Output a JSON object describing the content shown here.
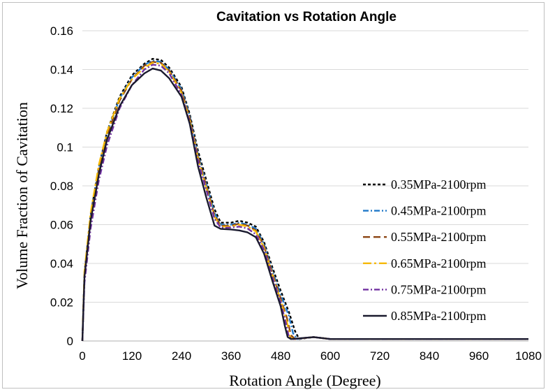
{
  "chart_data": {
    "type": "line",
    "title": "Cavitation vs Rotation Angle",
    "xlabel": "Rotation Angle (Degree)",
    "ylabel": "Volume Fraction of Cavitation",
    "xlim": [
      0,
      1080
    ],
    "ylim": [
      0,
      0.16
    ],
    "xticks": [
      0,
      120,
      240,
      360,
      480,
      600,
      720,
      840,
      960,
      1080
    ],
    "yticks": [
      0,
      0.02,
      0.04,
      0.06,
      0.08,
      0.1,
      0.12,
      0.14,
      0.16
    ],
    "xtick_labels": [
      "0",
      "120",
      "240",
      "360",
      "480",
      "600",
      "720",
      "840",
      "960",
      "1080"
    ],
    "ytick_labels": [
      "0",
      "0.02",
      "0.04",
      "0.06",
      "0.08",
      "0.1",
      "0.12",
      "0.14",
      "0.16"
    ],
    "grid": "horizontal",
    "legend_position": "right",
    "series": [
      {
        "name": "0.35MPa-2100rpm",
        "color": "#000000",
        "dash": "short-dash",
        "points": [
          [
            0,
            0
          ],
          [
            5,
            0.035
          ],
          [
            20,
            0.065
          ],
          [
            40,
            0.09
          ],
          [
            60,
            0.108
          ],
          [
            90,
            0.126
          ],
          [
            120,
            0.137
          ],
          [
            150,
            0.143
          ],
          [
            170,
            0.1455
          ],
          [
            190,
            0.145
          ],
          [
            210,
            0.141
          ],
          [
            240,
            0.131
          ],
          [
            260,
            0.117
          ],
          [
            280,
            0.098
          ],
          [
            300,
            0.083
          ],
          [
            320,
            0.068
          ],
          [
            335,
            0.061
          ],
          [
            360,
            0.061
          ],
          [
            380,
            0.062
          ],
          [
            400,
            0.061
          ],
          [
            420,
            0.059
          ],
          [
            440,
            0.051
          ],
          [
            460,
            0.038
          ],
          [
            480,
            0.026
          ],
          [
            500,
            0.015
          ],
          [
            515,
            0.005
          ],
          [
            525,
            0.001
          ],
          [
            560,
            0.002
          ],
          [
            600,
            0.001
          ],
          [
            700,
            0.001
          ],
          [
            800,
            0.001
          ],
          [
            900,
            0.001
          ],
          [
            1000,
            0.001
          ],
          [
            1080,
            0.001
          ]
        ]
      },
      {
        "name": "0.45MPa-2100rpm",
        "color": "#1f78c8",
        "dash": "dash-dot",
        "points": [
          [
            0,
            0
          ],
          [
            5,
            0.034
          ],
          [
            20,
            0.064
          ],
          [
            40,
            0.089
          ],
          [
            60,
            0.107
          ],
          [
            90,
            0.125
          ],
          [
            120,
            0.136
          ],
          [
            150,
            0.1425
          ],
          [
            170,
            0.1445
          ],
          [
            190,
            0.144
          ],
          [
            210,
            0.14
          ],
          [
            240,
            0.13
          ],
          [
            260,
            0.116
          ],
          [
            280,
            0.096
          ],
          [
            300,
            0.081
          ],
          [
            320,
            0.066
          ],
          [
            335,
            0.06
          ],
          [
            360,
            0.06
          ],
          [
            380,
            0.061
          ],
          [
            400,
            0.06
          ],
          [
            420,
            0.058
          ],
          [
            440,
            0.05
          ],
          [
            460,
            0.036
          ],
          [
            480,
            0.024
          ],
          [
            500,
            0.013
          ],
          [
            510,
            0.004
          ],
          [
            520,
            0.001
          ],
          [
            560,
            0.002
          ],
          [
            600,
            0.001
          ],
          [
            700,
            0.001
          ],
          [
            800,
            0.001
          ],
          [
            900,
            0.001
          ],
          [
            1000,
            0.001
          ],
          [
            1080,
            0.001
          ]
        ]
      },
      {
        "name": "0.55MPa-2100rpm",
        "color": "#8b4513",
        "dash": "long-dash",
        "points": [
          [
            0,
            0
          ],
          [
            5,
            0.034
          ],
          [
            20,
            0.063
          ],
          [
            40,
            0.088
          ],
          [
            60,
            0.106
          ],
          [
            90,
            0.124
          ],
          [
            120,
            0.135
          ],
          [
            150,
            0.142
          ],
          [
            170,
            0.144
          ],
          [
            190,
            0.1435
          ],
          [
            210,
            0.1395
          ],
          [
            240,
            0.129
          ],
          [
            260,
            0.115
          ],
          [
            280,
            0.095
          ],
          [
            300,
            0.08
          ],
          [
            320,
            0.065
          ],
          [
            335,
            0.0595
          ],
          [
            360,
            0.0595
          ],
          [
            380,
            0.0605
          ],
          [
            400,
            0.0595
          ],
          [
            420,
            0.057
          ],
          [
            440,
            0.049
          ],
          [
            460,
            0.035
          ],
          [
            480,
            0.022
          ],
          [
            495,
            0.012
          ],
          [
            505,
            0.003
          ],
          [
            515,
            0.001
          ],
          [
            560,
            0.002
          ],
          [
            600,
            0.001
          ],
          [
            700,
            0.001
          ],
          [
            800,
            0.001
          ],
          [
            900,
            0.001
          ],
          [
            1000,
            0.001
          ],
          [
            1080,
            0.001
          ]
        ]
      },
      {
        "name": "0.65MPa-2100rpm",
        "color": "#f5b800",
        "dash": "long-dash-dot",
        "points": [
          [
            0,
            0
          ],
          [
            5,
            0.036
          ],
          [
            20,
            0.066
          ],
          [
            40,
            0.091
          ],
          [
            60,
            0.108
          ],
          [
            90,
            0.125
          ],
          [
            120,
            0.135
          ],
          [
            150,
            0.141
          ],
          [
            170,
            0.1435
          ],
          [
            190,
            0.143
          ],
          [
            210,
            0.139
          ],
          [
            240,
            0.128
          ],
          [
            260,
            0.114
          ],
          [
            280,
            0.094
          ],
          [
            300,
            0.079
          ],
          [
            320,
            0.064
          ],
          [
            335,
            0.059
          ],
          [
            360,
            0.059
          ],
          [
            380,
            0.06
          ],
          [
            400,
            0.059
          ],
          [
            420,
            0.0565
          ],
          [
            440,
            0.048
          ],
          [
            460,
            0.034
          ],
          [
            480,
            0.021
          ],
          [
            495,
            0.01
          ],
          [
            503,
            0.002
          ],
          [
            512,
            0.001
          ],
          [
            560,
            0.002
          ],
          [
            600,
            0.001
          ],
          [
            700,
            0.001
          ],
          [
            800,
            0.001
          ],
          [
            900,
            0.001
          ],
          [
            1000,
            0.001
          ],
          [
            1080,
            0.001
          ]
        ]
      },
      {
        "name": "0.75MPa-2100rpm",
        "color": "#7030a0",
        "dash": "dash-dot",
        "points": [
          [
            0,
            0
          ],
          [
            5,
            0.03
          ],
          [
            20,
            0.058
          ],
          [
            40,
            0.083
          ],
          [
            60,
            0.101
          ],
          [
            90,
            0.12
          ],
          [
            120,
            0.132
          ],
          [
            150,
            0.14
          ],
          [
            170,
            0.1425
          ],
          [
            190,
            0.142
          ],
          [
            210,
            0.138
          ],
          [
            240,
            0.127
          ],
          [
            260,
            0.113
          ],
          [
            280,
            0.093
          ],
          [
            300,
            0.078
          ],
          [
            320,
            0.063
          ],
          [
            335,
            0.0585
          ],
          [
            360,
            0.0585
          ],
          [
            380,
            0.059
          ],
          [
            400,
            0.058
          ],
          [
            420,
            0.055
          ],
          [
            440,
            0.047
          ],
          [
            460,
            0.033
          ],
          [
            480,
            0.02
          ],
          [
            493,
            0.009
          ],
          [
            500,
            0.002
          ],
          [
            510,
            0.001
          ],
          [
            560,
            0.002
          ],
          [
            600,
            0.001
          ],
          [
            700,
            0.001
          ],
          [
            800,
            0.001
          ],
          [
            900,
            0.001
          ],
          [
            1000,
            0.001
          ],
          [
            1080,
            0.001
          ]
        ]
      },
      {
        "name": "0.85MPa-2100rpm",
        "color": "#1a1a2e",
        "dash": "solid",
        "points": [
          [
            0,
            0
          ],
          [
            5,
            0.033
          ],
          [
            20,
            0.062
          ],
          [
            40,
            0.086
          ],
          [
            60,
            0.104
          ],
          [
            90,
            0.121
          ],
          [
            120,
            0.132
          ],
          [
            150,
            0.138
          ],
          [
            170,
            0.1405
          ],
          [
            190,
            0.1395
          ],
          [
            210,
            0.1355
          ],
          [
            240,
            0.126
          ],
          [
            260,
            0.112
          ],
          [
            280,
            0.09
          ],
          [
            300,
            0.074
          ],
          [
            320,
            0.0595
          ],
          [
            335,
            0.0578
          ],
          [
            360,
            0.0575
          ],
          [
            380,
            0.057
          ],
          [
            400,
            0.056
          ],
          [
            420,
            0.0535
          ],
          [
            440,
            0.045
          ],
          [
            460,
            0.031
          ],
          [
            480,
            0.018
          ],
          [
            490,
            0.008
          ],
          [
            497,
            0.002
          ],
          [
            505,
            0.001
          ],
          [
            560,
            0.002
          ],
          [
            600,
            0.001
          ],
          [
            700,
            0.001
          ],
          [
            800,
            0.001
          ],
          [
            900,
            0.001
          ],
          [
            1000,
            0.001
          ],
          [
            1080,
            0.001
          ]
        ]
      }
    ]
  }
}
